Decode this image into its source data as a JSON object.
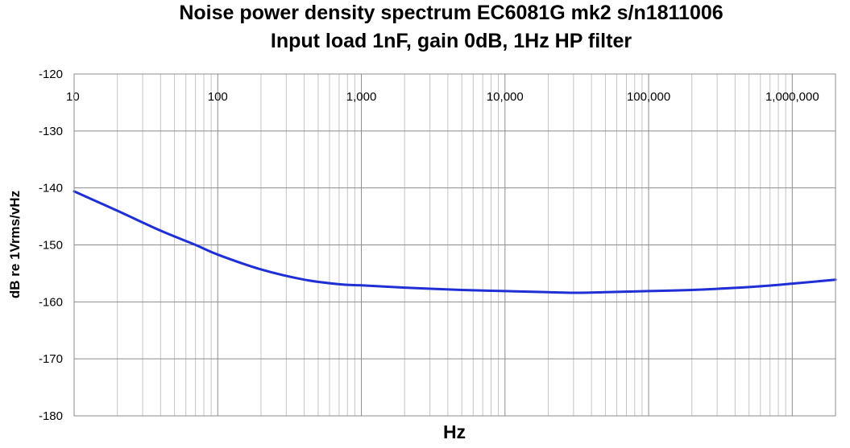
{
  "chart_data": {
    "type": "line",
    "title": "Noise power density spectrum EC6081G mk2 s/n1811006",
    "subtitle": "Input load 1nF, gain 0dB, 1Hz HP filter",
    "xlabel": "Hz",
    "ylabel": "dB re 1Vrms/vHz",
    "xscale": "log",
    "xlim": [
      10,
      2000000
    ],
    "ylim": [
      -180,
      -120
    ],
    "x_tick_values": [
      10,
      100,
      1000,
      10000,
      100000,
      1000000
    ],
    "x_tick_labels": [
      "10",
      "100",
      "1,000",
      "10,000",
      "100,000",
      "1,000,000"
    ],
    "y_tick_values": [
      -120,
      -130,
      -140,
      -150,
      -160,
      -170,
      -180
    ],
    "y_tick_labels": [
      "-120",
      "-130",
      "-140",
      "-150",
      "-160",
      "-170",
      "-180"
    ],
    "grid": true,
    "legend": "none",
    "series": [
      {
        "color": "#1f2fd6",
        "x": [
          10,
          20,
          40,
          70,
          100,
          200,
          400,
          700,
          1000,
          2000,
          5000,
          10000,
          20000,
          30000,
          50000,
          100000,
          200000,
          500000,
          1000000,
          2000000
        ],
        "y": [
          -140.6,
          -144.0,
          -147.5,
          -150.0,
          -151.7,
          -154.3,
          -156.1,
          -156.9,
          -157.1,
          -157.5,
          -157.9,
          -158.1,
          -158.3,
          -158.4,
          -158.3,
          -158.1,
          -157.9,
          -157.4,
          -156.8,
          -156.1
        ]
      }
    ]
  }
}
